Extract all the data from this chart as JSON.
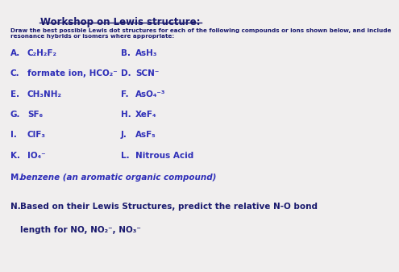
{
  "title": "Workshop on Lewis structure:",
  "subtitle": "Draw the best possible Lewis dot structures for each of the following compounds or ions shown below, and include\nresonance hybrids or isomers where appropriate:",
  "color_dark": "#1a1a6e",
  "color_blue": "#2e2eb8",
  "bg_color": "#f0eeee",
  "items_left": [
    [
      "A.",
      "C₂H₂F₂"
    ],
    [
      "C.",
      "formate ion, HCO₂⁻"
    ],
    [
      "E.",
      "CH₃NH₂"
    ],
    [
      "G.",
      "SF₆"
    ],
    [
      "I.",
      "ClF₃"
    ],
    [
      "K.",
      "IO₄⁻"
    ]
  ],
  "items_right": [
    [
      "B.",
      "AsH₃"
    ],
    [
      "D.",
      "SCN⁻"
    ],
    [
      "F.",
      "AsO₄⁻³"
    ],
    [
      "H.",
      "XeF₄"
    ],
    [
      "J.",
      "AsF₅"
    ],
    [
      "L.",
      "Nitrous Acid"
    ]
  ],
  "item_m": [
    "M.",
    "benzene (an aromatic organic compound)"
  ],
  "item_n_label": "N.",
  "item_n_text1": "Based on their Lewis Structures, predict the relative N-O bond",
  "item_n_text2": "length for NO, NO₂⁻, NO₃⁻"
}
